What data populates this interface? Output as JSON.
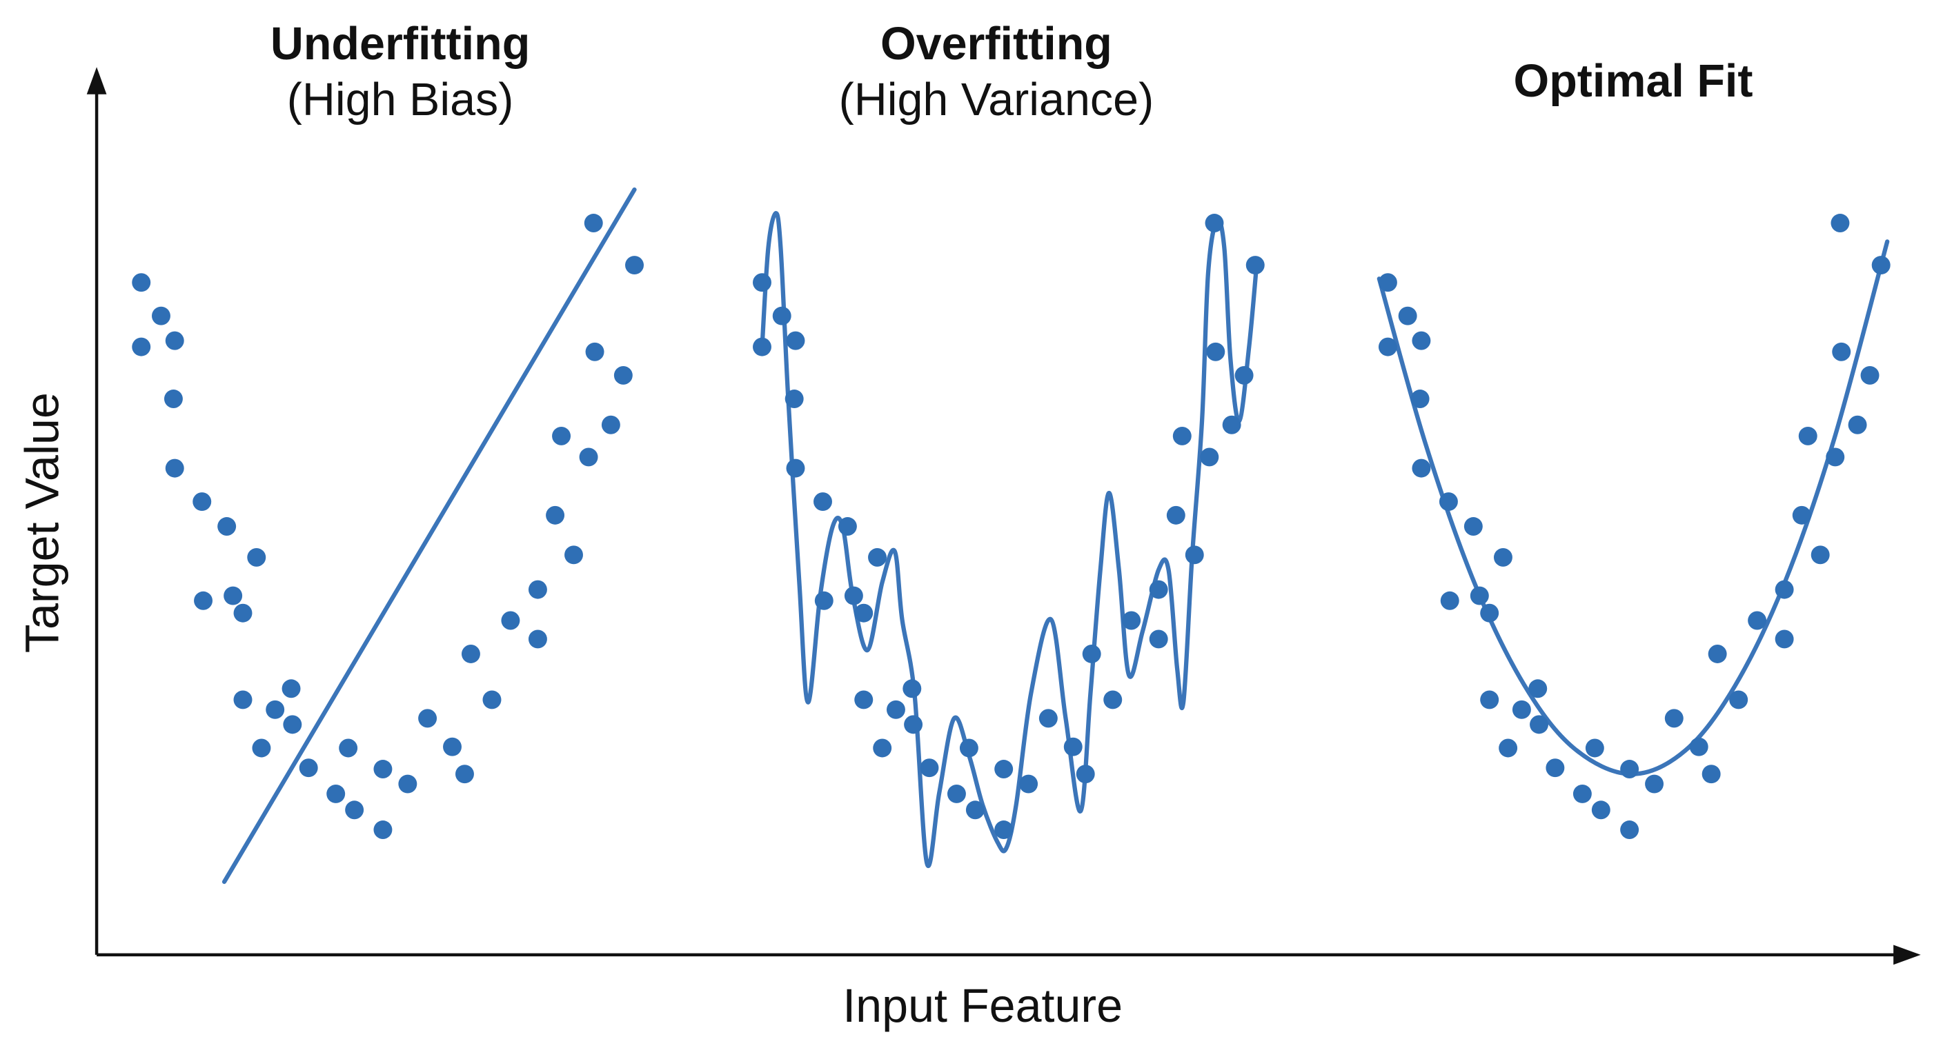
{
  "chart_data": {
    "type": "scatter",
    "x_label": "Input Feature",
    "y_label": "Target Value",
    "xlim": [
      0,
      1470
    ],
    "ylim": [
      0,
      713
    ],
    "color": "#2f6fb5",
    "line_color": "#3b75b9",
    "panels": [
      {
        "title": "Underfitting",
        "subtitle": "(High Bias)",
        "fit": "line",
        "x": [
          36,
          52,
          36,
          63,
          62,
          63,
          85,
          105,
          129,
          86,
          110,
          118,
          118,
          144,
          157,
          158,
          133,
          171,
          203,
          193,
          208,
          231,
          251,
          231,
          267,
          287,
          297,
          302,
          319,
          334,
          356,
          356,
          370,
          375,
          385,
          397,
          402,
          415,
          401,
          425,
          434
        ],
        "values": [
          543,
          516,
          491,
          496,
          449,
          393,
          366,
          346,
          321,
          286,
          290,
          276,
          206,
          198,
          215,
          186,
          167,
          151,
          167,
          130,
          117,
          150,
          138,
          101,
          191,
          168,
          146,
          243,
          206,
          270,
          295,
          255,
          355,
          419,
          323,
          402,
          487,
          428,
          591,
          468,
          557
        ],
        "fit_x": [
          103,
          434
        ],
        "fit_values": [
          59,
          618
        ]
      },
      {
        "title": "Overfitting",
        "subtitle": "(High Variance)",
        "fit": "curve",
        "x": [
          537,
          553,
          537,
          564,
          563,
          564,
          586,
          606,
          630,
          587,
          611,
          619,
          619,
          645,
          658,
          659,
          634,
          672,
          704,
          694,
          709,
          732,
          752,
          732,
          768,
          788,
          798,
          803,
          820,
          835,
          857,
          857,
          871,
          876,
          886,
          898,
          903,
          916,
          902,
          926,
          935
        ],
        "values": [
          543,
          516,
          491,
          496,
          449,
          393,
          366,
          346,
          321,
          286,
          290,
          276,
          206,
          198,
          215,
          186,
          167,
          151,
          167,
          130,
          117,
          150,
          138,
          101,
          191,
          168,
          146,
          243,
          206,
          270,
          295,
          255,
          355,
          419,
          323,
          402,
          487,
          428,
          591,
          468,
          557
        ],
        "fit_x": [
          537,
          542,
          548,
          552,
          558,
          567,
          574,
          584,
          594,
          602,
          610,
          622,
          634,
          644,
          650,
          660,
          670,
          680,
          692,
          704,
          715,
          727,
          734,
          742,
          754,
          770,
          782,
          794,
          802,
          810,
          817,
          825,
          833,
          844,
          857,
          865,
          872,
          877,
          884,
          892,
          897,
          904,
          910,
          915,
          922,
          930,
          936
        ],
        "fit_values": [
          491,
          571,
          599,
          571,
          451,
          301,
          204,
          291,
          346,
          346,
          291,
          246,
          301,
          326,
          271,
          211,
          74,
          131,
          191,
          161,
          121,
          91,
          86,
          121,
          211,
          271,
          191,
          116,
          211,
          311,
          373,
          311,
          226,
          261,
          311,
          311,
          231,
          204,
          321,
          431,
          551,
          593,
          571,
          481,
          431,
          491,
          556
        ]
      },
      {
        "title": "Optimal Fit",
        "fit": "curve",
        "x": [
          1042,
          1058,
          1042,
          1069,
          1068,
          1069,
          1091,
          1111,
          1135,
          1092,
          1116,
          1124,
          1124,
          1150,
          1163,
          1164,
          1139,
          1177,
          1209,
          1199,
          1214,
          1237,
          1257,
          1237,
          1273,
          1293,
          1303,
          1308,
          1325,
          1340,
          1362,
          1362,
          1376,
          1381,
          1391,
          1403,
          1408,
          1421,
          1407,
          1431,
          1440
        ],
        "values": [
          543,
          516,
          491,
          496,
          449,
          393,
          366,
          346,
          321,
          286,
          290,
          276,
          206,
          198,
          215,
          186,
          167,
          151,
          167,
          130,
          117,
          150,
          138,
          101,
          191,
          168,
          146,
          243,
          206,
          270,
          295,
          255,
          355,
          419,
          323,
          402,
          487,
          428,
          591,
          468,
          557
        ],
        "fit_x": [
          1035,
          1072,
          1112,
          1152,
          1192,
          1238,
          1282,
          1322,
          1362,
          1402,
          1445
        ],
        "fit_values": [
          546,
          414,
          300,
          218,
          167,
          146,
          165,
          217,
          300,
          416,
          576
        ]
      }
    ]
  }
}
